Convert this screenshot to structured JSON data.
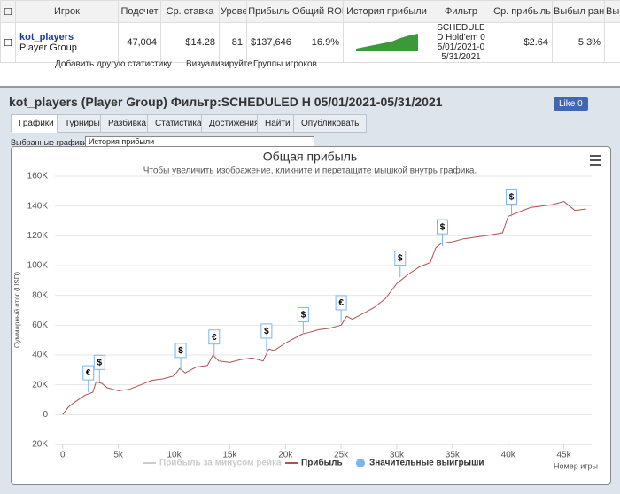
{
  "table": {
    "headers": [
      "Игрок",
      "Подсчет",
      "Ср. ставка",
      "Урове",
      "Прибыль",
      "Общий ROI",
      "История прибыли",
      "Фильтр",
      "Ср. прибыль",
      "Выбыл рано",
      "Выбы"
    ],
    "row": {
      "player": "kot_players",
      "group": "Player Group",
      "count": "47,004",
      "avg_stake": "$14.28",
      "level": "81",
      "profit": "$137,646",
      "roi": "16.9%",
      "filter": "SCHEDULED Hold'em 05/01/2021-05/31/2021",
      "avg_profit": "$2.64",
      "early_exit": "5.3%"
    }
  },
  "toolbar": [
    "Добавить другую статистику",
    "Визуализируйте",
    "Группы игроков"
  ],
  "panel": {
    "title": "kot_players (Player Group) Фильтр:SCHEDULED Н 05/01/2021-05/31/2021",
    "like": "Like",
    "like_count": 0,
    "tabs": [
      "Графики",
      "Турниры",
      "Разбивка",
      "Статистика",
      "Достижения",
      "Найти",
      "Опубликовать"
    ],
    "selector_label": "Выбранные графики:",
    "selector_value": "История прибыли"
  },
  "chart_data": {
    "type": "line",
    "title": "Общая прибыль",
    "subtitle": "Чтобы увеличить изображение, кликните и перетащите мышкой внутрь графика.",
    "y_label": "Суммарный итог (USD)",
    "x_label": "Номер игры",
    "xlim": [
      -700,
      47500
    ],
    "ylim": [
      -20000,
      160000
    ],
    "xticks": [
      0,
      {
        "value": 5000,
        "label": "5k"
      },
      {
        "value": 10000,
        "label": "10k"
      },
      {
        "value": 15000,
        "label": "15k"
      },
      {
        "value": 20000,
        "label": "20k"
      },
      {
        "value": 25000,
        "label": "25k"
      },
      {
        "value": 30000,
        "label": "30k"
      },
      {
        "value": 35000,
        "label": "35k"
      },
      {
        "value": 40000,
        "label": "40k"
      },
      {
        "value": 45000,
        "label": "45k"
      }
    ],
    "yticks": [
      {
        "value": -20000,
        "label": "-20K"
      },
      0,
      {
        "value": 20000,
        "label": "20K"
      },
      {
        "value": 40000,
        "label": "40K"
      },
      {
        "value": 60000,
        "label": "60K"
      },
      {
        "value": 80000,
        "label": "80K"
      },
      {
        "value": 100000,
        "label": "100K"
      },
      {
        "value": 120000,
        "label": "120K"
      },
      {
        "value": 140000,
        "label": "140K"
      },
      {
        "value": 160000,
        "label": "160K"
      }
    ],
    "grid": true,
    "hidden_series": {
      "name": "Прибыль за минусом рейка",
      "color": "#cccccc"
    },
    "series": [
      {
        "name": "Прибыль",
        "color": "#b05050",
        "x": [
          0,
          500,
          1000,
          2000,
          2700,
          3000,
          3500,
          4000,
          5000,
          6000,
          7000,
          8000,
          9000,
          10000,
          10500,
          11000,
          12000,
          13000,
          13500,
          14000,
          15000,
          16000,
          17000,
          18000,
          18500,
          19000,
          20000,
          21000,
          21500,
          22000,
          23000,
          24000,
          25000,
          25500,
          26000,
          27000,
          28000,
          29000,
          30000,
          31000,
          32000,
          33000,
          33500,
          34000,
          35000,
          36000,
          38000,
          39500,
          40000,
          41000,
          42000,
          43000,
          44000,
          45000,
          45500,
          46000,
          47000
        ],
        "values": [
          0,
          5000,
          8000,
          13000,
          15000,
          22000,
          21000,
          18000,
          16000,
          17000,
          20000,
          23000,
          24000,
          26000,
          31000,
          28000,
          32000,
          33000,
          40000,
          36000,
          35000,
          37000,
          38000,
          36000,
          44000,
          43000,
          48000,
          52000,
          54000,
          55000,
          57000,
          58000,
          60000,
          66000,
          64000,
          68000,
          72000,
          78000,
          88000,
          94000,
          99000,
          102000,
          112000,
          115000,
          116000,
          118000,
          120000,
          122000,
          133000,
          136000,
          139000,
          140000,
          141000,
          143000,
          140000,
          137000,
          138000
        ]
      }
    ],
    "flags": {
      "name": "Значительные выигрыши",
      "color": "#7cb5ec",
      "x": [
        2300,
        3300,
        10600,
        13600,
        18300,
        21600,
        25000,
        30300,
        34100,
        40300
      ],
      "values": [
        15000,
        22000,
        30000,
        39000,
        43000,
        54000,
        62000,
        92000,
        113000,
        133000
      ],
      "labels": [
        "€",
        "$",
        "$",
        "€",
        "$",
        "$",
        "€",
        "$",
        "$",
        "$"
      ]
    }
  }
}
